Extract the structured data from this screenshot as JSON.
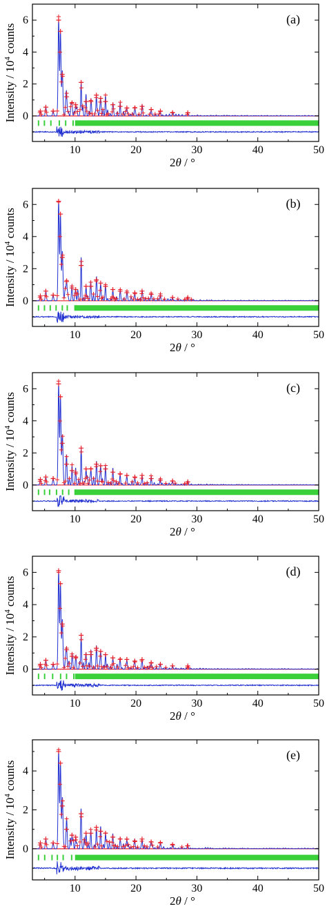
{
  "figure": {
    "x_axis_label_prefix": "2",
    "x_axis_label_theta": "θ",
    "x_axis_label_suffix": " / °",
    "y_axis_label_main": "Intensity / 10",
    "y_axis_label_sup": "4",
    "y_axis_label_end": " counts"
  },
  "colors": {
    "observed": "#e8202a",
    "calculated": "#1f2fd0",
    "difference": "#1f2fd0",
    "reflections": "#3ad03a",
    "baseline": "#e8202a"
  },
  "chart_data": [
    {
      "type": "line",
      "panel_label": "(a)",
      "xlim": [
        3,
        50
      ],
      "ylim": [
        -1.6,
        7.0
      ],
      "x_ticks": [
        10,
        20,
        30,
        40,
        50
      ],
      "y_ticks": [
        0,
        2,
        4,
        6
      ],
      "series": [
        {
          "role": "observed",
          "x": [
            4.3,
            5.2,
            6.4,
            7.3,
            7.6,
            7.9,
            8.6,
            9.5,
            10.1,
            11.0,
            11.8,
            12.6,
            13.5,
            14.2,
            15.0,
            16.2,
            17.4,
            18.5,
            19.8,
            21.0,
            22.5,
            24.0,
            26.0,
            28.5
          ],
          "y": [
            0.3,
            0.55,
            0.3,
            6.0,
            5.3,
            2.6,
            1.2,
            0.8,
            0.7,
            2.1,
            0.9,
            0.9,
            1.3,
            1.1,
            0.9,
            0.7,
            0.6,
            0.5,
            0.5,
            0.6,
            0.4,
            0.3,
            0.2,
            0.2
          ]
        },
        {
          "role": "difference_offset",
          "value": -1.0
        },
        {
          "role": "reflections_offset",
          "value": -0.45
        }
      ]
    },
    {
      "type": "line",
      "panel_label": "(b)",
      "xlim": [
        3,
        50
      ],
      "ylim": [
        -1.6,
        7.0
      ],
      "x_ticks": [
        10,
        20,
        30,
        40,
        50
      ],
      "y_ticks": [
        0,
        2,
        4,
        6
      ],
      "series": [
        {
          "role": "observed",
          "x": [
            4.3,
            5.2,
            6.4,
            7.3,
            7.6,
            7.9,
            8.6,
            9.5,
            10.1,
            11.0,
            11.8,
            12.6,
            13.5,
            14.2,
            15.0,
            16.2,
            17.4,
            18.5,
            19.8,
            21.0,
            22.5,
            24.0,
            26.0,
            28.5
          ],
          "y": [
            0.3,
            0.6,
            0.35,
            6.2,
            5.4,
            2.7,
            1.2,
            0.8,
            0.7,
            2.2,
            0.9,
            0.9,
            1.3,
            1.1,
            0.9,
            0.7,
            0.6,
            0.5,
            0.5,
            0.6,
            0.4,
            0.3,
            0.2,
            0.2
          ]
        },
        {
          "role": "difference_offset",
          "value": -1.0
        },
        {
          "role": "reflections_offset",
          "value": -0.45
        }
      ]
    },
    {
      "type": "line",
      "panel_label": "(c)",
      "xlim": [
        3,
        50
      ],
      "ylim": [
        -1.6,
        7.0
      ],
      "x_ticks": [
        10,
        20,
        30,
        40,
        50
      ],
      "y_ticks": [
        0,
        2,
        4,
        6
      ],
      "series": [
        {
          "role": "observed",
          "x": [
            4.3,
            5.2,
            6.4,
            7.3,
            7.6,
            7.9,
            8.6,
            9.5,
            10.1,
            11.0,
            11.8,
            12.6,
            13.5,
            14.2,
            15.0,
            16.2,
            17.4,
            18.5,
            19.8,
            21.0,
            22.5,
            24.0,
            26.0,
            28.5
          ],
          "y": [
            0.35,
            0.5,
            0.4,
            6.3,
            5.5,
            2.6,
            1.3,
            0.9,
            0.8,
            2.3,
            1.0,
            1.0,
            1.3,
            1.2,
            1.0,
            0.8,
            0.7,
            0.6,
            0.5,
            0.6,
            0.4,
            0.3,
            0.25,
            0.2
          ]
        },
        {
          "role": "difference_offset",
          "value": -1.0
        },
        {
          "role": "reflections_offset",
          "value": -0.45
        }
      ]
    },
    {
      "type": "line",
      "panel_label": "(d)",
      "xlim": [
        3,
        50
      ],
      "ylim": [
        -1.6,
        7.0
      ],
      "x_ticks": [
        10,
        20,
        30,
        40,
        50
      ],
      "y_ticks": [
        0,
        2,
        4,
        6
      ],
      "series": [
        {
          "role": "observed",
          "x": [
            4.3,
            5.2,
            6.4,
            7.3,
            7.6,
            7.9,
            8.6,
            9.5,
            10.1,
            11.0,
            11.8,
            12.6,
            13.5,
            14.2,
            15.0,
            16.2,
            17.4,
            18.5,
            19.8,
            21.0,
            22.5,
            24.0,
            26.0,
            28.5
          ],
          "y": [
            0.3,
            0.55,
            0.3,
            6.1,
            5.3,
            2.8,
            1.2,
            0.8,
            0.7,
            2.1,
            0.9,
            0.9,
            1.3,
            1.1,
            0.9,
            0.7,
            0.6,
            0.6,
            0.5,
            0.6,
            0.4,
            0.3,
            0.2,
            0.2
          ]
        },
        {
          "role": "difference_offset",
          "value": -1.0
        },
        {
          "role": "reflections_offset",
          "value": -0.45
        }
      ]
    },
    {
      "type": "line",
      "panel_label": "(e)",
      "xlim": [
        3,
        50
      ],
      "ylim": [
        -1.6,
        5.6
      ],
      "x_ticks": [
        10,
        20,
        30,
        40,
        50
      ],
      "y_ticks": [
        0,
        2,
        4
      ],
      "series": [
        {
          "role": "observed",
          "x": [
            4.3,
            5.2,
            6.4,
            7.3,
            7.6,
            7.9,
            8.6,
            9.5,
            10.1,
            11.0,
            11.8,
            12.6,
            13.5,
            14.2,
            15.0,
            16.2,
            17.4,
            18.5,
            19.8,
            21.0,
            22.5,
            24.0,
            26.0,
            28.5
          ],
          "y": [
            0.3,
            0.5,
            0.3,
            5.0,
            4.4,
            2.2,
            1.0,
            0.7,
            0.6,
            1.8,
            0.8,
            0.8,
            1.1,
            0.9,
            0.8,
            0.6,
            0.5,
            0.5,
            0.4,
            0.5,
            0.35,
            0.3,
            0.2,
            0.15
          ]
        },
        {
          "role": "difference_offset",
          "value": -1.0
        },
        {
          "role": "reflections_offset",
          "value": -0.45
        }
      ]
    }
  ]
}
